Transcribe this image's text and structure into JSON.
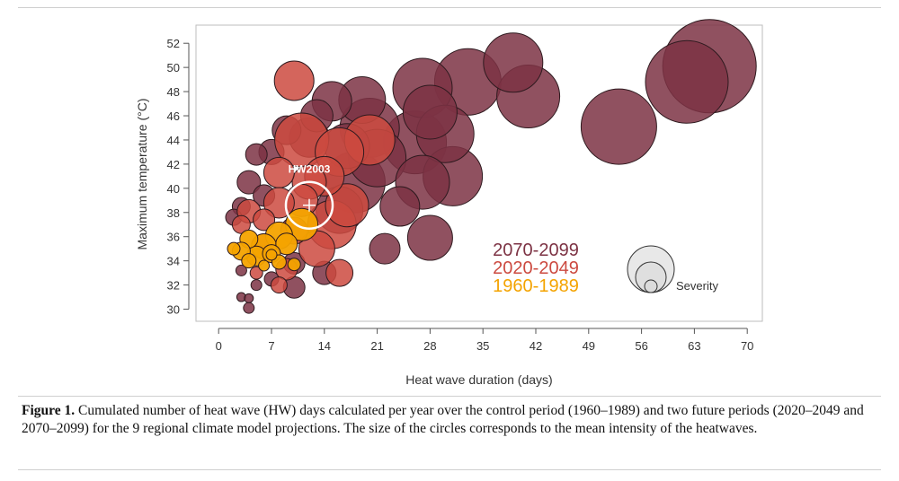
{
  "chart_data": {
    "type": "scatter",
    "title": "",
    "xlabel": "Heat wave duration (days)",
    "ylabel": "Maximum temperature (°C)",
    "xlim": [
      -3,
      72
    ],
    "ylim": [
      29,
      53.5
    ],
    "xticks": [
      0,
      7,
      14,
      21,
      28,
      35,
      42,
      49,
      56,
      63,
      70
    ],
    "yticks": [
      30,
      32,
      34,
      36,
      38,
      40,
      42,
      44,
      46,
      48,
      50,
      52
    ],
    "grid": false,
    "size_encoding": "Severity",
    "legend": {
      "placement": "bottom-right",
      "entries": [
        {
          "label": "2070-2099",
          "color": "#7d3344"
        },
        {
          "label": "2020-2049",
          "color": "#cc4a40"
        },
        {
          "label": "1960-1989",
          "color": "#f4a300"
        }
      ],
      "size_label": "Severity"
    },
    "annotation": {
      "label": "HW2003",
      "x": 12,
      "y": 38.6
    },
    "series": [
      {
        "name": "2070-2099",
        "color": "#7d3344",
        "points": [
          {
            "x": 65,
            "y": 50.1,
            "s": 52
          },
          {
            "x": 62,
            "y": 48.8,
            "s": 46
          },
          {
            "x": 53,
            "y": 45.1,
            "s": 42
          },
          {
            "x": 39,
            "y": 50.4,
            "s": 33
          },
          {
            "x": 41,
            "y": 47.6,
            "s": 35
          },
          {
            "x": 33,
            "y": 48.8,
            "s": 37
          },
          {
            "x": 27,
            "y": 48.3,
            "s": 33
          },
          {
            "x": 28,
            "y": 46.3,
            "s": 30
          },
          {
            "x": 30,
            "y": 44.5,
            "s": 32
          },
          {
            "x": 26,
            "y": 43.8,
            "s": 35
          },
          {
            "x": 31,
            "y": 41.0,
            "s": 33
          },
          {
            "x": 27,
            "y": 40.5,
            "s": 30
          },
          {
            "x": 24,
            "y": 38.5,
            "s": 22
          },
          {
            "x": 28,
            "y": 35.9,
            "s": 25
          },
          {
            "x": 22,
            "y": 35.0,
            "s": 17
          },
          {
            "x": 19,
            "y": 47.3,
            "s": 26
          },
          {
            "x": 20,
            "y": 45.0,
            "s": 33
          },
          {
            "x": 21,
            "y": 42.5,
            "s": 32
          },
          {
            "x": 18,
            "y": 40.5,
            "s": 34
          },
          {
            "x": 16,
            "y": 38.2,
            "s": 26
          },
          {
            "x": 15,
            "y": 47.2,
            "s": 22
          },
          {
            "x": 13,
            "y": 46.0,
            "s": 18
          },
          {
            "x": 12,
            "y": 44.2,
            "s": 22
          },
          {
            "x": 9,
            "y": 44.8,
            "s": 16
          },
          {
            "x": 7,
            "y": 43.0,
            "s": 14
          },
          {
            "x": 5,
            "y": 42.8,
            "s": 12
          },
          {
            "x": 4,
            "y": 40.5,
            "s": 13
          },
          {
            "x": 6,
            "y": 39.4,
            "s": 12
          },
          {
            "x": 3,
            "y": 38.5,
            "s": 10
          },
          {
            "x": 2,
            "y": 37.6,
            "s": 9
          },
          {
            "x": 10,
            "y": 33.8,
            "s": 12
          },
          {
            "x": 10,
            "y": 31.8,
            "s": 12
          },
          {
            "x": 14,
            "y": 33.0,
            "s": 13
          },
          {
            "x": 7,
            "y": 32.5,
            "s": 8
          },
          {
            "x": 5,
            "y": 32.0,
            "s": 6
          },
          {
            "x": 3,
            "y": 31.0,
            "s": 5
          },
          {
            "x": 4,
            "y": 30.9,
            "s": 5
          },
          {
            "x": 4,
            "y": 30.1,
            "s": 6
          },
          {
            "x": 3,
            "y": 33.2,
            "s": 6
          },
          {
            "x": 17,
            "y": 43.5,
            "s": 25
          }
        ]
      },
      {
        "name": "2020-2049",
        "color": "#cc4a40",
        "points": [
          {
            "x": 10,
            "y": 48.9,
            "s": 22
          },
          {
            "x": 11,
            "y": 44.0,
            "s": 30
          },
          {
            "x": 16,
            "y": 43.0,
            "s": 27
          },
          {
            "x": 20,
            "y": 44.0,
            "s": 28
          },
          {
            "x": 14,
            "y": 41.0,
            "s": 22
          },
          {
            "x": 8,
            "y": 41.3,
            "s": 17
          },
          {
            "x": 12,
            "y": 40.5,
            "s": 19
          },
          {
            "x": 17,
            "y": 38.6,
            "s": 24
          },
          {
            "x": 15,
            "y": 37.0,
            "s": 27
          },
          {
            "x": 13,
            "y": 35.0,
            "s": 20
          },
          {
            "x": 16,
            "y": 33.0,
            "s": 15
          },
          {
            "x": 10,
            "y": 36.5,
            "s": 15
          },
          {
            "x": 8,
            "y": 38.8,
            "s": 17
          },
          {
            "x": 6,
            "y": 37.4,
            "s": 12
          },
          {
            "x": 4,
            "y": 38.1,
            "s": 13
          },
          {
            "x": 3,
            "y": 37.0,
            "s": 10
          },
          {
            "x": 9,
            "y": 33.3,
            "s": 12
          },
          {
            "x": 8,
            "y": 32.0,
            "s": 9
          },
          {
            "x": 5,
            "y": 33.0,
            "s": 7
          },
          {
            "x": 6,
            "y": 35.5,
            "s": 10
          },
          {
            "x": 11,
            "y": 39.0,
            "s": 18
          }
        ]
      },
      {
        "name": "1960-1989",
        "color": "#f4a300",
        "points": [
          {
            "x": 11,
            "y": 37.0,
            "s": 18
          },
          {
            "x": 8,
            "y": 36.1,
            "s": 15
          },
          {
            "x": 9,
            "y": 35.4,
            "s": 12
          },
          {
            "x": 6,
            "y": 35.2,
            "s": 14
          },
          {
            "x": 4,
            "y": 35.8,
            "s": 10
          },
          {
            "x": 3,
            "y": 34.8,
            "s": 10
          },
          {
            "x": 5,
            "y": 34.4,
            "s": 11
          },
          {
            "x": 7,
            "y": 34.6,
            "s": 10
          },
          {
            "x": 8,
            "y": 33.9,
            "s": 8
          },
          {
            "x": 4,
            "y": 34.0,
            "s": 8
          },
          {
            "x": 10,
            "y": 33.7,
            "s": 7
          },
          {
            "x": 2,
            "y": 35.0,
            "s": 7
          },
          {
            "x": 6,
            "y": 33.6,
            "s": 6
          },
          {
            "x": 7,
            "y": 34.5,
            "s": 6
          }
        ]
      }
    ]
  },
  "caption": {
    "label": "Figure 1.",
    "text": " Cumulated number of heat wave (HW) days calculated per year over the control period (1960–1989) and two future periods (2020–2049 and 2070–2099) for the 9 regional climate model projections. The size of the circles corresponds to the mean intensity of the heatwaves."
  }
}
